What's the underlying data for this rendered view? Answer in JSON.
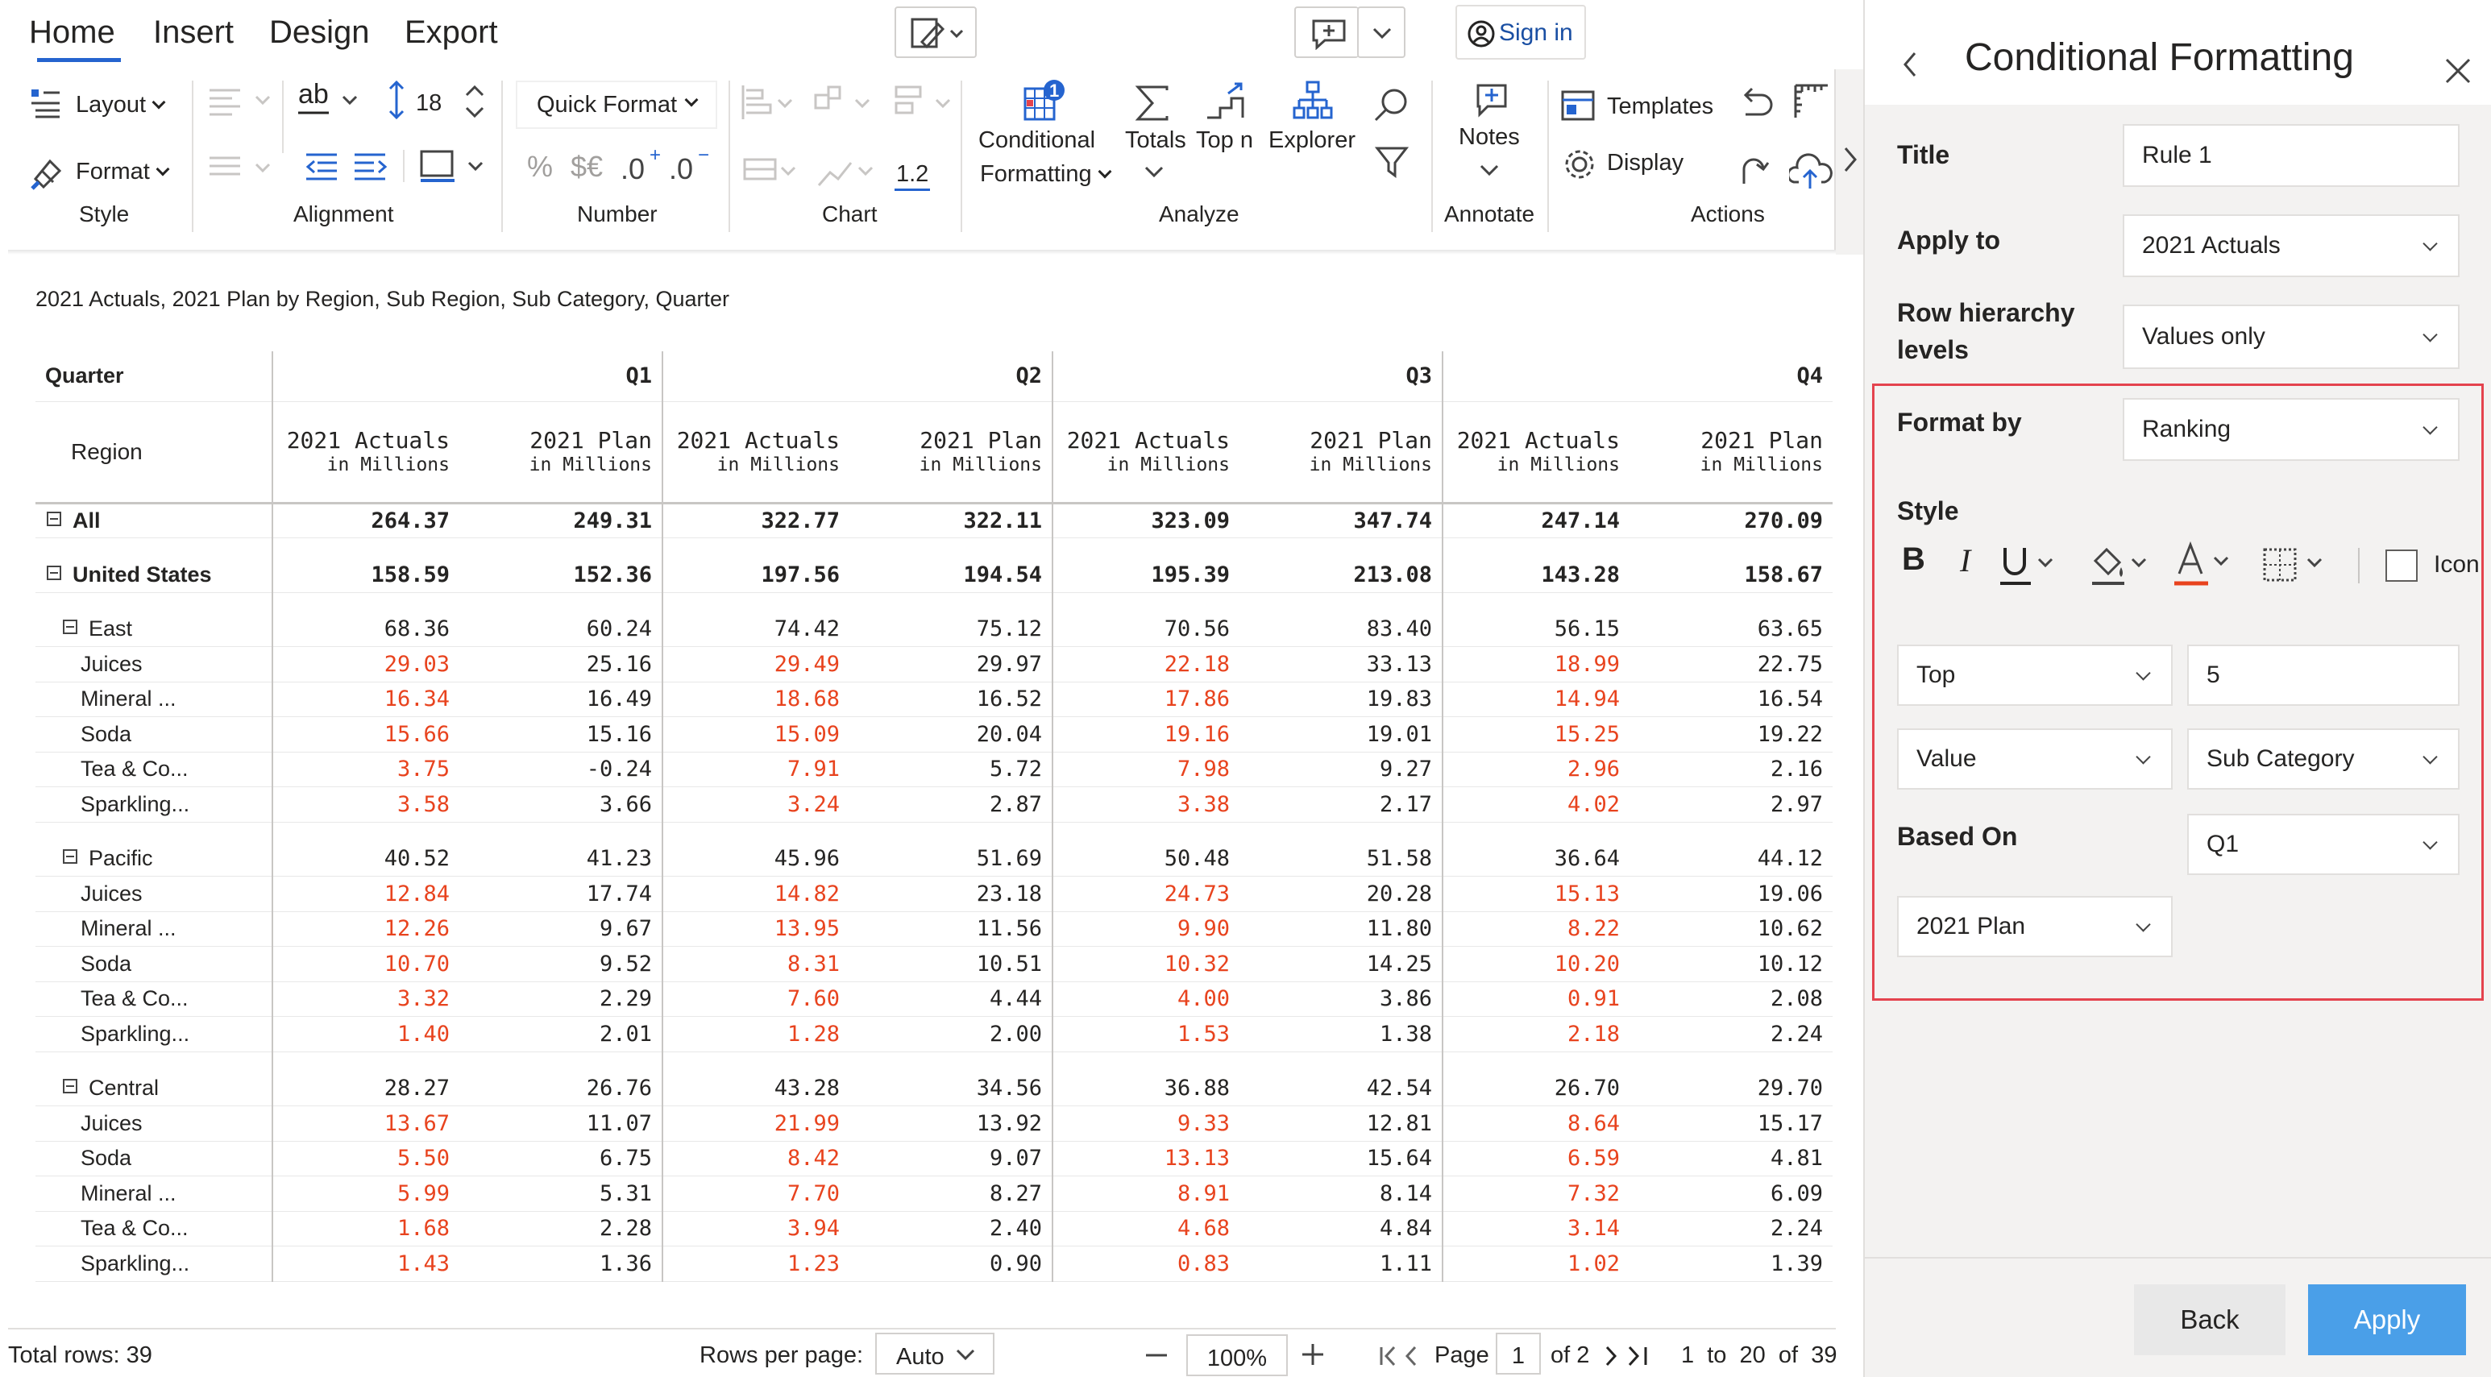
{
  "ribbon": {
    "tabs": [
      "Home",
      "Insert",
      "Design",
      "Export"
    ],
    "sign_in": "Sign in",
    "layout": "Layout",
    "format": "Format",
    "style_group": "Style",
    "font_size": "18",
    "alignment_group": "Alignment",
    "quick_format": "Quick Format",
    "number_group": "Number",
    "chart_group": "Chart",
    "decimal_value": "1.2",
    "conditional": "Conditional",
    "formatting": "Formatting",
    "badge": "1",
    "totals": "Totals",
    "topn": "Top n",
    "explorer": "Explorer",
    "analyze_group": "Analyze",
    "notes": "Notes",
    "annotate_group": "Annotate",
    "templates": "Templates",
    "display": "Display",
    "actions_group": "Actions",
    "percent": "%",
    "currency": "$€"
  },
  "report": {
    "subtitle": "2021 Actuals, 2021 Plan by Region, Sub Region, Sub Category, Quarter",
    "quarter_label": "Quarter",
    "region_label": "Region",
    "quarters": [
      "Q1",
      "Q2",
      "Q3",
      "Q4"
    ],
    "measure_actual": "2021 Actuals",
    "measure_plan": "2021 Plan",
    "unit": "in Millions"
  },
  "rows": [
    {
      "label": "All",
      "level": 0,
      "bold": true,
      "toggle": true,
      "values": [
        "264.37",
        "249.31",
        "322.77",
        "322.11",
        "323.09",
        "347.74",
        "247.14",
        "270.09"
      ],
      "hl": []
    },
    {
      "gap": true
    },
    {
      "label": "United States",
      "level": 0,
      "bold": true,
      "toggle": true,
      "values": [
        "158.59",
        "152.36",
        "197.56",
        "194.54",
        "195.39",
        "213.08",
        "143.28",
        "158.67"
      ],
      "hl": []
    },
    {
      "gap": true
    },
    {
      "label": "East",
      "level": 1,
      "bold": false,
      "toggle": true,
      "values": [
        "68.36",
        "60.24",
        "74.42",
        "75.12",
        "70.56",
        "83.40",
        "56.15",
        "63.65"
      ],
      "hl": []
    },
    {
      "label": "Juices",
      "level": 2,
      "values": [
        "29.03",
        "25.16",
        "29.49",
        "29.97",
        "22.18",
        "33.13",
        "18.99",
        "22.75"
      ],
      "hl": [
        0,
        2,
        4,
        6
      ]
    },
    {
      "label": "Mineral ...",
      "level": 2,
      "values": [
        "16.34",
        "16.49",
        "18.68",
        "16.52",
        "17.86",
        "19.83",
        "14.94",
        "16.54"
      ],
      "hl": [
        0,
        2,
        4,
        6
      ]
    },
    {
      "label": "Soda",
      "level": 2,
      "values": [
        "15.66",
        "15.16",
        "15.09",
        "20.04",
        "19.16",
        "19.01",
        "15.25",
        "19.22"
      ],
      "hl": [
        0,
        2,
        4,
        6
      ]
    },
    {
      "label": "Tea & Co...",
      "level": 2,
      "values": [
        "3.75",
        "-0.24",
        "7.91",
        "5.72",
        "7.98",
        "9.27",
        "2.96",
        "2.16"
      ],
      "hl": [
        0,
        2,
        4,
        6
      ]
    },
    {
      "label": "Sparkling...",
      "level": 2,
      "values": [
        "3.58",
        "3.66",
        "3.24",
        "2.87",
        "3.38",
        "2.17",
        "4.02",
        "2.97"
      ],
      "hl": [
        0,
        2,
        4,
        6
      ]
    },
    {
      "gap": true
    },
    {
      "label": "Pacific",
      "level": 1,
      "bold": false,
      "toggle": true,
      "values": [
        "40.52",
        "41.23",
        "45.96",
        "51.69",
        "50.48",
        "51.58",
        "36.64",
        "44.12"
      ],
      "hl": []
    },
    {
      "label": "Juices",
      "level": 2,
      "values": [
        "12.84",
        "17.74",
        "14.82",
        "23.18",
        "24.73",
        "20.28",
        "15.13",
        "19.06"
      ],
      "hl": [
        0,
        2,
        4,
        6
      ]
    },
    {
      "label": "Mineral ...",
      "level": 2,
      "values": [
        "12.26",
        "9.67",
        "13.95",
        "11.56",
        "9.90",
        "11.80",
        "8.22",
        "10.62"
      ],
      "hl": [
        0,
        2,
        4,
        6
      ]
    },
    {
      "label": "Soda",
      "level": 2,
      "values": [
        "10.70",
        "9.52",
        "8.31",
        "10.51",
        "10.32",
        "14.25",
        "10.20",
        "10.12"
      ],
      "hl": [
        0,
        2,
        4,
        6
      ]
    },
    {
      "label": "Tea & Co...",
      "level": 2,
      "values": [
        "3.32",
        "2.29",
        "7.60",
        "4.44",
        "4.00",
        "3.86",
        "0.91",
        "2.08"
      ],
      "hl": [
        0,
        2,
        4,
        6
      ]
    },
    {
      "label": "Sparkling...",
      "level": 2,
      "values": [
        "1.40",
        "2.01",
        "1.28",
        "2.00",
        "1.53",
        "1.38",
        "2.18",
        "2.24"
      ],
      "hl": [
        0,
        2,
        4,
        6
      ]
    },
    {
      "gap": true
    },
    {
      "label": "Central",
      "level": 1,
      "bold": false,
      "toggle": true,
      "values": [
        "28.27",
        "26.76",
        "43.28",
        "34.56",
        "36.88",
        "42.54",
        "26.70",
        "29.70"
      ],
      "hl": []
    },
    {
      "label": "Juices",
      "level": 2,
      "values": [
        "13.67",
        "11.07",
        "21.99",
        "13.92",
        "9.33",
        "12.81",
        "8.64",
        "15.17"
      ],
      "hl": [
        0,
        2,
        4,
        6
      ]
    },
    {
      "label": "Soda",
      "level": 2,
      "values": [
        "5.50",
        "6.75",
        "8.42",
        "9.07",
        "13.13",
        "15.64",
        "6.59",
        "4.81"
      ],
      "hl": [
        0,
        2,
        4,
        6
      ]
    },
    {
      "label": "Mineral ...",
      "level": 2,
      "values": [
        "5.99",
        "5.31",
        "7.70",
        "8.27",
        "8.91",
        "8.14",
        "7.32",
        "6.09"
      ],
      "hl": [
        0,
        2,
        4,
        6
      ]
    },
    {
      "label": "Tea & Co...",
      "level": 2,
      "values": [
        "1.68",
        "2.28",
        "3.94",
        "2.40",
        "4.68",
        "4.84",
        "3.14",
        "2.24"
      ],
      "hl": [
        0,
        2,
        4,
        6
      ]
    },
    {
      "label": "Sparkling...",
      "level": 2,
      "values": [
        "1.43",
        "1.36",
        "1.23",
        "0.90",
        "0.83",
        "1.11",
        "1.02",
        "1.39"
      ],
      "hl": [
        0,
        2,
        4,
        6
      ]
    }
  ],
  "footer": {
    "total_rows": "Total rows: 39",
    "rows_per_page_label": "Rows per page:",
    "rows_per_page": "Auto",
    "zoom": "100%",
    "page_label": "Page",
    "page": "1",
    "of_pages": "of 2",
    "range": "1  to  20  of  39"
  },
  "panel": {
    "title": "Conditional Formatting",
    "title_label": "Title",
    "title_value": "Rule 1",
    "apply_to_label": "Apply to",
    "apply_to": "2021 Actuals",
    "row_hier_label1": "Row hierarchy",
    "row_hier_label2": "levels",
    "row_hier": "Values only",
    "format_by_label": "Format by",
    "format_by": "Ranking",
    "style_label": "Style",
    "icon_label": "Icon",
    "top": "Top",
    "top_n": "5",
    "value": "Value",
    "sub_category": "Sub Category",
    "based_on_label": "Based On",
    "based_on": "Q1",
    "based_measure": "2021 Plan",
    "back": "Back",
    "apply": "Apply",
    "accent": "#4a9fe8",
    "highlight_color": "#e8431e",
    "box_color": "#e4434e"
  }
}
